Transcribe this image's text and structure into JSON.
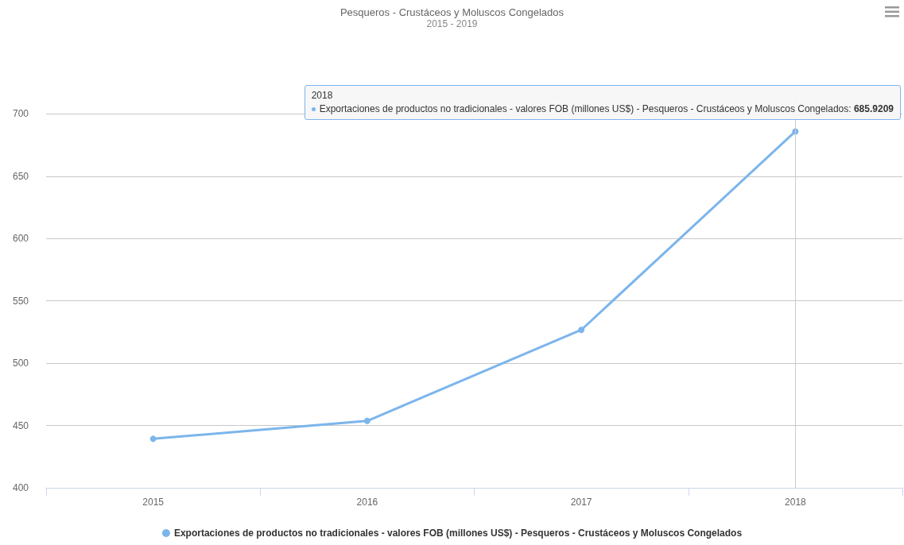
{
  "chart_data": {
    "type": "line",
    "title": "Pesqueros - Crustáceos y Moluscos Congelados",
    "subtitle": "2015 - 2019",
    "categories": [
      "2015",
      "2016",
      "2017",
      "2018"
    ],
    "series": [
      {
        "name": "Exportaciones de productos no tradicionales - valores FOB (millones US$) - Pesqueros - Crustáceos y Moluscos Congelados",
        "color": "#7cb5ec",
        "values": [
          439.3,
          453.7,
          526.7,
          685.9209
        ]
      }
    ],
    "ylim": [
      400,
      720
    ],
    "yticks": [
      400,
      450,
      500,
      550,
      600,
      650,
      700
    ],
    "grid": "y",
    "legend": "bottom",
    "marker": "circle",
    "line_style": "solid",
    "ref_lines": [
      {
        "axis": "x",
        "value": "2018",
        "color": "#cccccc"
      }
    ],
    "annotations": [
      "2018",
      {
        "text": "Exportaciones de productos no tradicionales - valores FOB (millones US$) - Pesqueros - Crustáceos y Moluscos Congelados: 685.9209",
        "x": "2018",
        "y": 685.9209
      }
    ]
  }
}
